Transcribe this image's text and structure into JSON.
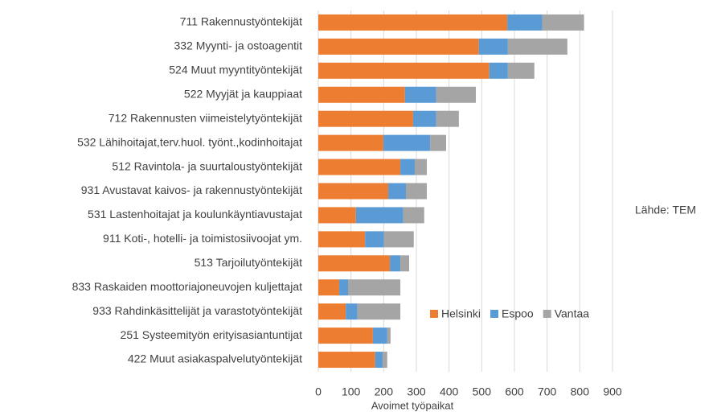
{
  "chart_data": {
    "type": "stacked_barh",
    "categories": [
      "711 Rakennustyöntekijät",
      "332 Myynti- ja ostoagentit",
      "524 Muut myyntityöntekijät",
      "522 Myyjät ja kauppiaat",
      "712 Rakennusten viimeistelytyöntekijät",
      "532 Lähihoitajat,terv.huol. työnt.,kodinhoitajat",
      "512 Ravintola- ja suurtaloustyöntekijät",
      "931 Avustavat kaivos- ja rakennustyöntekijät",
      "531 Lastenhoitajat ja koulunkäyntiavustajat",
      "911 Koti-, hotelli- ja toimistosiivoojat ym.",
      "513 Tarjoilutyöntekijät",
      "833 Raskaiden moottoriajoneuvojen kuljettajat",
      "933 Rahdinkäsittelijät ja varastotyöntekijät",
      "251 Systeemityön erityisasiantuntijat",
      "422 Muut asiakaspalvelutyöntekijät"
    ],
    "series": [
      {
        "name": "Helsinki",
        "color": "#ed7d31",
        "values": [
          578,
          491,
          523,
          265,
          290,
          199,
          251,
          214,
          115,
          143,
          219,
          64,
          84,
          167,
          174
        ]
      },
      {
        "name": "Espoo",
        "color": "#5b9bd5",
        "values": [
          107,
          89,
          57,
          96,
          71,
          143,
          44,
          54,
          145,
          58,
          32,
          27,
          36,
          44,
          23
        ]
      },
      {
        "name": "Vantaa",
        "color": "#a5a5a5",
        "values": [
          128,
          182,
          81,
          121,
          69,
          49,
          37,
          64,
          64,
          91,
          27,
          160,
          131,
          10,
          14
        ]
      }
    ],
    "xlim": [
      0,
      900
    ],
    "xticks": [
      0,
      100,
      200,
      300,
      400,
      500,
      600,
      700,
      800,
      900
    ],
    "xlabel": "Avoimet työpaikat",
    "annotation": "Lähde: TEM",
    "grid": true,
    "legend": "lower right"
  }
}
